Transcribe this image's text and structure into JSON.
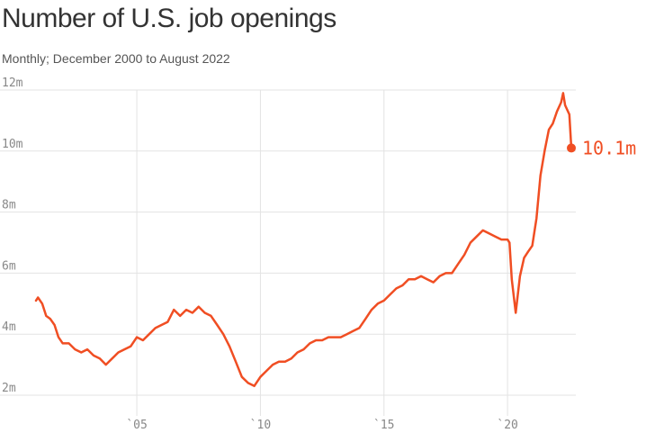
{
  "title": "Number of U.S. job openings",
  "subtitle": "Monthly; December 2000 to August 2022",
  "colors": {
    "line": "#f04e23",
    "grid": "#e3e3e3",
    "text": "#333333",
    "tick": "#888888"
  },
  "chart_data": {
    "type": "line",
    "title": "Number of U.S. job openings",
    "subtitle": "Monthly; December 2000 to August 2022",
    "xlabel": "",
    "ylabel": "",
    "xlim": [
      2000.92,
      2022.58
    ],
    "ylim": [
      2,
      12
    ],
    "grid": true,
    "legend": "none",
    "y_ticks": [
      {
        "value": 2,
        "label": "2m"
      },
      {
        "value": 4,
        "label": "4m"
      },
      {
        "value": 6,
        "label": "6m"
      },
      {
        "value": 8,
        "label": "8m"
      },
      {
        "value": 10,
        "label": "10m"
      },
      {
        "value": 12,
        "label": "12m"
      }
    ],
    "x_ticks": [
      {
        "value": 2005,
        "label": "`05"
      },
      {
        "value": 2010,
        "label": "`10"
      },
      {
        "value": 2015,
        "label": "`15"
      },
      {
        "value": 2020,
        "label": "`20"
      }
    ],
    "end_label": "10.1m",
    "series": [
      {
        "values": [
          [
            2000.92,
            5.1
          ],
          [
            2001.0,
            5.2
          ],
          [
            2001.17,
            5.0
          ],
          [
            2001.33,
            4.6
          ],
          [
            2001.5,
            4.5
          ],
          [
            2001.67,
            4.3
          ],
          [
            2001.83,
            3.9
          ],
          [
            2002.0,
            3.7
          ],
          [
            2002.25,
            3.7
          ],
          [
            2002.5,
            3.5
          ],
          [
            2002.75,
            3.4
          ],
          [
            2003.0,
            3.5
          ],
          [
            2003.25,
            3.3
          ],
          [
            2003.5,
            3.2
          ],
          [
            2003.75,
            3.0
          ],
          [
            2004.0,
            3.2
          ],
          [
            2004.25,
            3.4
          ],
          [
            2004.5,
            3.5
          ],
          [
            2004.75,
            3.6
          ],
          [
            2005.0,
            3.9
          ],
          [
            2005.25,
            3.8
          ],
          [
            2005.5,
            4.0
          ],
          [
            2005.75,
            4.2
          ],
          [
            2006.0,
            4.3
          ],
          [
            2006.25,
            4.4
          ],
          [
            2006.5,
            4.8
          ],
          [
            2006.75,
            4.6
          ],
          [
            2007.0,
            4.8
          ],
          [
            2007.25,
            4.7
          ],
          [
            2007.5,
            4.9
          ],
          [
            2007.75,
            4.7
          ],
          [
            2008.0,
            4.6
          ],
          [
            2008.25,
            4.3
          ],
          [
            2008.5,
            4.0
          ],
          [
            2008.75,
            3.6
          ],
          [
            2009.0,
            3.1
          ],
          [
            2009.25,
            2.6
          ],
          [
            2009.5,
            2.4
          ],
          [
            2009.75,
            2.3
          ],
          [
            2010.0,
            2.6
          ],
          [
            2010.25,
            2.8
          ],
          [
            2010.5,
            3.0
          ],
          [
            2010.75,
            3.1
          ],
          [
            2011.0,
            3.1
          ],
          [
            2011.25,
            3.2
          ],
          [
            2011.5,
            3.4
          ],
          [
            2011.75,
            3.5
          ],
          [
            2012.0,
            3.7
          ],
          [
            2012.25,
            3.8
          ],
          [
            2012.5,
            3.8
          ],
          [
            2012.75,
            3.9
          ],
          [
            2013.0,
            3.9
          ],
          [
            2013.25,
            3.9
          ],
          [
            2013.5,
            4.0
          ],
          [
            2013.75,
            4.1
          ],
          [
            2014.0,
            4.2
          ],
          [
            2014.25,
            4.5
          ],
          [
            2014.5,
            4.8
          ],
          [
            2014.75,
            5.0
          ],
          [
            2015.0,
            5.1
          ],
          [
            2015.25,
            5.3
          ],
          [
            2015.5,
            5.5
          ],
          [
            2015.75,
            5.6
          ],
          [
            2016.0,
            5.8
          ],
          [
            2016.25,
            5.8
          ],
          [
            2016.5,
            5.9
          ],
          [
            2016.75,
            5.8
          ],
          [
            2017.0,
            5.7
          ],
          [
            2017.25,
            5.9
          ],
          [
            2017.5,
            6.0
          ],
          [
            2017.75,
            6.0
          ],
          [
            2018.0,
            6.3
          ],
          [
            2018.25,
            6.6
          ],
          [
            2018.5,
            7.0
          ],
          [
            2018.75,
            7.2
          ],
          [
            2019.0,
            7.4
          ],
          [
            2019.25,
            7.3
          ],
          [
            2019.5,
            7.2
          ],
          [
            2019.75,
            7.1
          ],
          [
            2020.0,
            7.1
          ],
          [
            2020.08,
            7.0
          ],
          [
            2020.17,
            5.8
          ],
          [
            2020.33,
            4.7
          ],
          [
            2020.5,
            5.9
          ],
          [
            2020.67,
            6.5
          ],
          [
            2020.83,
            6.7
          ],
          [
            2021.0,
            6.9
          ],
          [
            2021.17,
            7.8
          ],
          [
            2021.33,
            9.2
          ],
          [
            2021.5,
            10.0
          ],
          [
            2021.67,
            10.7
          ],
          [
            2021.83,
            10.9
          ],
          [
            2022.0,
            11.3
          ],
          [
            2022.17,
            11.6
          ],
          [
            2022.25,
            11.9
          ],
          [
            2022.33,
            11.5
          ],
          [
            2022.5,
            11.2
          ],
          [
            2022.58,
            10.1
          ]
        ]
      }
    ]
  }
}
